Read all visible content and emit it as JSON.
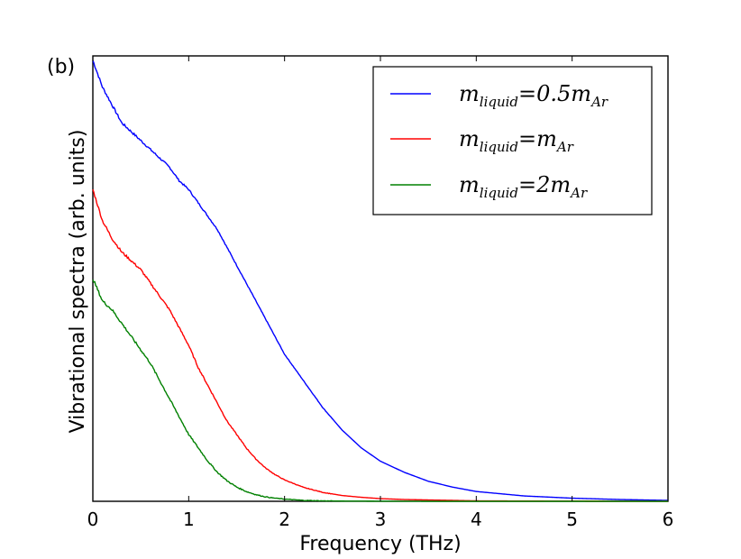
{
  "chart_data": {
    "type": "line",
    "panel_label": "(b)",
    "xlabel": "Frequency (THz)",
    "ylabel": "Vibrational spectra (arb. units)",
    "xlim": [
      0,
      6
    ],
    "ylim": [
      0,
      1.0
    ],
    "x_ticks": [
      0,
      1,
      2,
      3,
      4,
      5,
      6
    ],
    "y_ticks_visible": false,
    "legend_position": "top-right",
    "x": [
      0,
      0.1,
      0.2,
      0.3,
      0.4,
      0.5,
      0.6,
      0.7,
      0.8,
      0.9,
      1.0,
      1.1,
      1.2,
      1.3,
      1.4,
      1.5,
      1.6,
      1.7,
      1.8,
      1.9,
      2.0,
      2.2,
      2.4,
      2.6,
      2.8,
      3.0,
      3.25,
      3.5,
      3.75,
      4.0,
      4.5,
      5.0,
      5.5,
      6.0
    ],
    "series": [
      {
        "name": "m_liquid=0.5m_Ar",
        "legend_main": "m",
        "legend_sub": "liquid",
        "legend_eq": "=0.5m",
        "legend_sub2": "Ar",
        "color": "#0000ff",
        "values": [
          0.99,
          0.93,
          0.89,
          0.85,
          0.83,
          0.81,
          0.79,
          0.77,
          0.75,
          0.72,
          0.7,
          0.67,
          0.64,
          0.61,
          0.57,
          0.53,
          0.49,
          0.45,
          0.41,
          0.37,
          0.33,
          0.27,
          0.21,
          0.16,
          0.12,
          0.09,
          0.065,
          0.045,
          0.032,
          0.022,
          0.012,
          0.007,
          0.004,
          0.002
        ]
      },
      {
        "name": "m_liquid=m_Ar",
        "legend_main": "m",
        "legend_sub": "liquid",
        "legend_eq": "=m",
        "legend_sub2": "Ar",
        "color": "#ff0000",
        "values": [
          0.7,
          0.63,
          0.59,
          0.56,
          0.54,
          0.52,
          0.49,
          0.46,
          0.43,
          0.39,
          0.35,
          0.3,
          0.26,
          0.22,
          0.18,
          0.15,
          0.12,
          0.095,
          0.075,
          0.06,
          0.048,
          0.031,
          0.02,
          0.013,
          0.009,
          0.006,
          0.004,
          0.003,
          0.002,
          0.001,
          0.0006,
          0.0003,
          0.0002,
          0.0001
        ]
      },
      {
        "name": "m_liquid=2m_Ar",
        "legend_main": "m",
        "legend_sub": "liquid",
        "legend_eq": "=2m",
        "legend_sub2": "Ar",
        "color": "#008000",
        "values": [
          0.5,
          0.45,
          0.43,
          0.4,
          0.37,
          0.34,
          0.31,
          0.27,
          0.23,
          0.19,
          0.15,
          0.12,
          0.09,
          0.065,
          0.046,
          0.032,
          0.022,
          0.015,
          0.01,
          0.007,
          0.005,
          0.002,
          0.001,
          0.0005,
          0.0003,
          0.0002,
          0.0001,
          0,
          0,
          0,
          0,
          0,
          0,
          0
        ]
      }
    ]
  }
}
